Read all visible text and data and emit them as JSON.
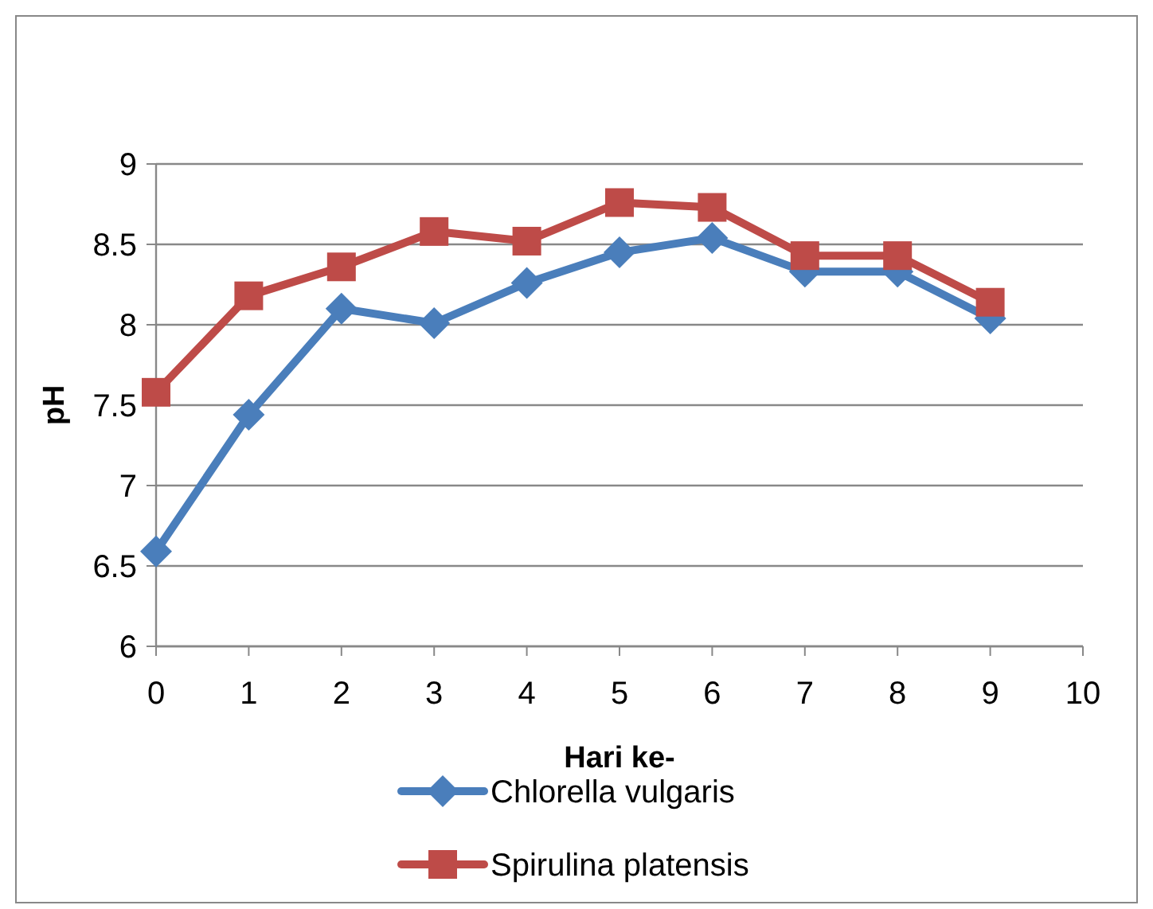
{
  "chart_data": {
    "type": "line",
    "xlabel": "Hari ke-",
    "ylabel": "pH",
    "x": [
      0,
      1,
      2,
      3,
      4,
      5,
      6,
      7,
      8,
      9
    ],
    "series": [
      {
        "name": "Chlorella vulgaris",
        "color": "#4a7ebb",
        "marker": "diamond",
        "values": [
          6.59,
          7.44,
          8.1,
          8.01,
          8.26,
          8.45,
          8.54,
          8.33,
          8.33,
          8.04
        ]
      },
      {
        "name": "Spirulina platensis",
        "color": "#be4b48",
        "marker": "square",
        "values": [
          7.58,
          8.18,
          8.36,
          8.58,
          8.52,
          8.76,
          8.73,
          8.43,
          8.43,
          8.14
        ]
      }
    ],
    "xlim": [
      0,
      10
    ],
    "xticks": [
      0,
      1,
      2,
      3,
      4,
      5,
      6,
      7,
      8,
      9,
      10
    ],
    "ylim": [
      6,
      9
    ],
    "yticks": [
      6,
      6.5,
      7,
      7.5,
      8,
      8.5,
      9
    ],
    "grid": "y",
    "legend": "bottom",
    "line_style": "solid"
  }
}
